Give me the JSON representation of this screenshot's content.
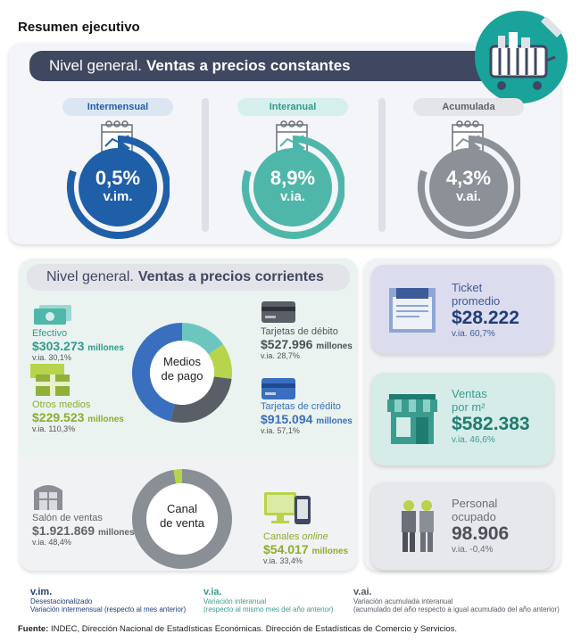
{
  "page_title": "Resumen ejecutivo",
  "constantes": {
    "banner_prefix": "Nivel general.",
    "banner_rest": "Ventas a precios constantes",
    "indicators": [
      {
        "label": "Intermensual",
        "value": "0,5%",
        "unit": "v.im.",
        "color": "#1f5fa8",
        "pill_bg": "#dce6f2",
        "pill_fg": "#1f5fa8"
      },
      {
        "label": "Interanual",
        "value": "8,9%",
        "unit": "v.ia.",
        "color": "#4fb7aa",
        "pill_bg": "#d6efec",
        "pill_fg": "#2f9b8e"
      },
      {
        "label": "Acumulada",
        "value": "4,3%",
        "unit": "v.ai.",
        "color": "#8c9198",
        "pill_bg": "#e3e5e8",
        "pill_fg": "#5d636b"
      }
    ]
  },
  "corrientes": {
    "banner_prefix": "Nivel general.",
    "banner_rest": "Ventas a precios corrientes",
    "medios_center": [
      "Medios",
      "de pago"
    ],
    "canal_center": [
      "Canal",
      "de venta"
    ],
    "efectivo": {
      "label": "Efectivo",
      "value": "$303.273",
      "unit": "millones",
      "via": "v.ia. 30,1%"
    },
    "otros": {
      "label": "Otros medios",
      "value": "$229.523",
      "unit": "millones",
      "via": "v.ia. 110,3%"
    },
    "debito": {
      "label": "Tarjetas de débito",
      "value": "$527.996",
      "unit": "millones",
      "via": "v.ia. 28,7%"
    },
    "credito": {
      "label": "Tarjetas de crédito",
      "value": "$915.094",
      "unit": "millones",
      "via": "v.ia. 57,1%"
    },
    "salon": {
      "label": "Salón de ventas",
      "value": "$1.921.869",
      "unit": "millones",
      "via": "v.ia. 48,4%"
    },
    "online": {
      "label_prefix": "Canales ",
      "label_em": "online",
      "value": "$54.017",
      "unit": "millones",
      "via": "v.ia. 33,4%"
    }
  },
  "cards": [
    {
      "label1": "Ticket",
      "label2": "promedio",
      "value": "$28.222",
      "via": "v.ia. 60,7%",
      "bg": "#dcdcef",
      "fg": "#3d5a99",
      "val_fg": "#1f3d7a"
    },
    {
      "label1": "Ventas",
      "label2": "por m²",
      "value": "$582.383",
      "via": "v.ia. 46,6%",
      "bg": "#d6ece9",
      "fg": "#3a9c8f",
      "val_fg": "#1e7c70"
    },
    {
      "label1": "Personal",
      "label2": "ocupado",
      "value": "98.906",
      "via": "v.ia. -0,4%",
      "bg": "#e7e8ec",
      "fg": "#6a6f78",
      "val_fg": "#4c5058"
    }
  ],
  "legend": [
    {
      "title": "v.im.",
      "line1": "Desestacionalizado",
      "line2": "Variación intermensual (respecto al mes anterior)",
      "color": "#1f3d7a"
    },
    {
      "title": "v.ia.",
      "line1": "Variación interanual",
      "line2": "(respecto al mismo mes del año anterior)",
      "color": "#4fb7aa"
    },
    {
      "title": "v.ai.",
      "line1": "Variación acumulada interanual",
      "line2": "(acumulado del año respecto a igual acumulado del año anterior)",
      "color": "#555b63"
    }
  ],
  "source_bold": "Fuente:",
  "source_text": " INDEC, Dirección Nacional de Estadísticas Económicas. Dirección de Estadísticas de Comercio y Servicios.",
  "chart_data": [
    {
      "type": "pie",
      "title": "Medios de pago",
      "unit": "millones de pesos",
      "categories": [
        "Efectivo",
        "Otros medios",
        "Tarjetas de débito",
        "Tarjetas de crédito"
      ],
      "values": [
        303273,
        229523,
        527996,
        915094
      ],
      "colors": [
        "#6cc6c0",
        "#b7d44a",
        "#5a5e66",
        "#3a6fc0"
      ]
    },
    {
      "type": "pie",
      "title": "Canal de venta",
      "unit": "millones de pesos",
      "categories": [
        "Salón de ventas",
        "Canales online"
      ],
      "values": [
        1921869,
        54017
      ],
      "colors": [
        "#8a8f96",
        "#b7d44a"
      ]
    }
  ]
}
